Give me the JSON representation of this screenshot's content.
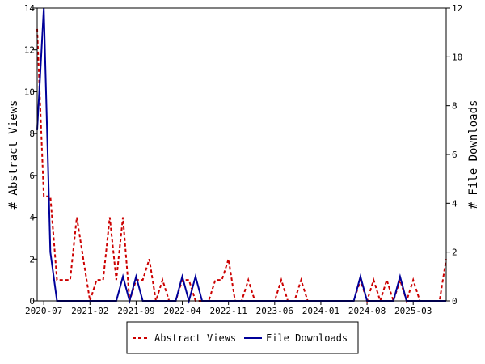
{
  "chart_data": {
    "type": "line",
    "x_tick_labels": [
      "2020-07",
      "2021-02",
      "2021-09",
      "2022-04",
      "2022-11",
      "2023-06",
      "2024-01",
      "2024-08",
      "2025-03"
    ],
    "x": [
      "2020-06",
      "2020-07",
      "2020-08",
      "2020-09",
      "2020-10",
      "2020-11",
      "2020-12",
      "2021-01",
      "2021-02",
      "2021-03",
      "2021-04",
      "2021-05",
      "2021-06",
      "2021-07",
      "2021-08",
      "2021-09",
      "2021-10",
      "2021-11",
      "2021-12",
      "2022-01",
      "2022-02",
      "2022-03",
      "2022-04",
      "2022-05",
      "2022-06",
      "2022-07",
      "2022-08",
      "2022-09",
      "2022-10",
      "2022-11",
      "2022-12",
      "2023-01",
      "2023-02",
      "2023-03",
      "2023-04",
      "2023-05",
      "2023-06",
      "2023-07",
      "2023-08",
      "2023-09",
      "2023-10",
      "2023-11",
      "2023-12",
      "2024-01",
      "2024-02",
      "2024-03",
      "2024-04",
      "2024-05",
      "2024-06",
      "2024-07",
      "2024-08",
      "2024-09",
      "2024-10",
      "2024-11",
      "2024-12",
      "2025-01",
      "2025-02",
      "2025-03",
      "2025-04",
      "2025-05",
      "2025-06",
      "2025-07",
      "2025-08"
    ],
    "series": [
      {
        "name": "Abstract Views",
        "axis": "left",
        "color": "#cc0000",
        "dash": "dashed",
        "values": [
          13,
          5,
          5,
          1,
          1,
          1,
          4,
          2,
          0,
          1,
          1,
          4,
          1,
          4,
          0,
          1,
          1,
          2,
          0,
          1,
          0,
          0,
          1,
          1,
          0,
          0,
          0,
          1,
          1,
          2,
          0,
          0,
          1,
          0,
          0,
          0,
          0,
          1,
          0,
          0,
          1,
          0,
          0,
          0,
          0,
          0,
          0,
          0,
          0,
          1,
          0,
          1,
          0,
          1,
          0,
          1,
          0,
          1,
          0,
          0,
          0,
          0,
          2
        ]
      },
      {
        "name": "File Downloads",
        "axis": "right",
        "color": "#000099",
        "dash": "solid",
        "values": [
          7,
          12,
          2,
          0,
          0,
          0,
          0,
          0,
          0,
          0,
          0,
          0,
          0,
          1,
          0,
          1,
          0,
          0,
          0,
          0,
          0,
          0,
          1,
          0,
          1,
          0,
          0,
          0,
          0,
          0,
          0,
          0,
          0,
          0,
          0,
          0,
          0,
          0,
          0,
          0,
          0,
          0,
          0,
          0,
          0,
          0,
          0,
          0,
          0,
          1,
          0,
          0,
          0,
          0,
          0,
          1,
          0,
          0,
          0,
          0,
          0,
          0,
          0
        ]
      }
    ],
    "ylabel_left": "# Abstract Views",
    "ylabel_right": "# File Downloads",
    "ylim_left": [
      0,
      14
    ],
    "ylim_right": [
      0,
      12
    ],
    "y_ticks_left": [
      0,
      2,
      4,
      6,
      8,
      10,
      12,
      14
    ],
    "y_ticks_right": [
      0,
      2,
      4,
      6,
      8,
      10,
      12
    ],
    "legend_position": "bottom-center",
    "grid": false
  }
}
